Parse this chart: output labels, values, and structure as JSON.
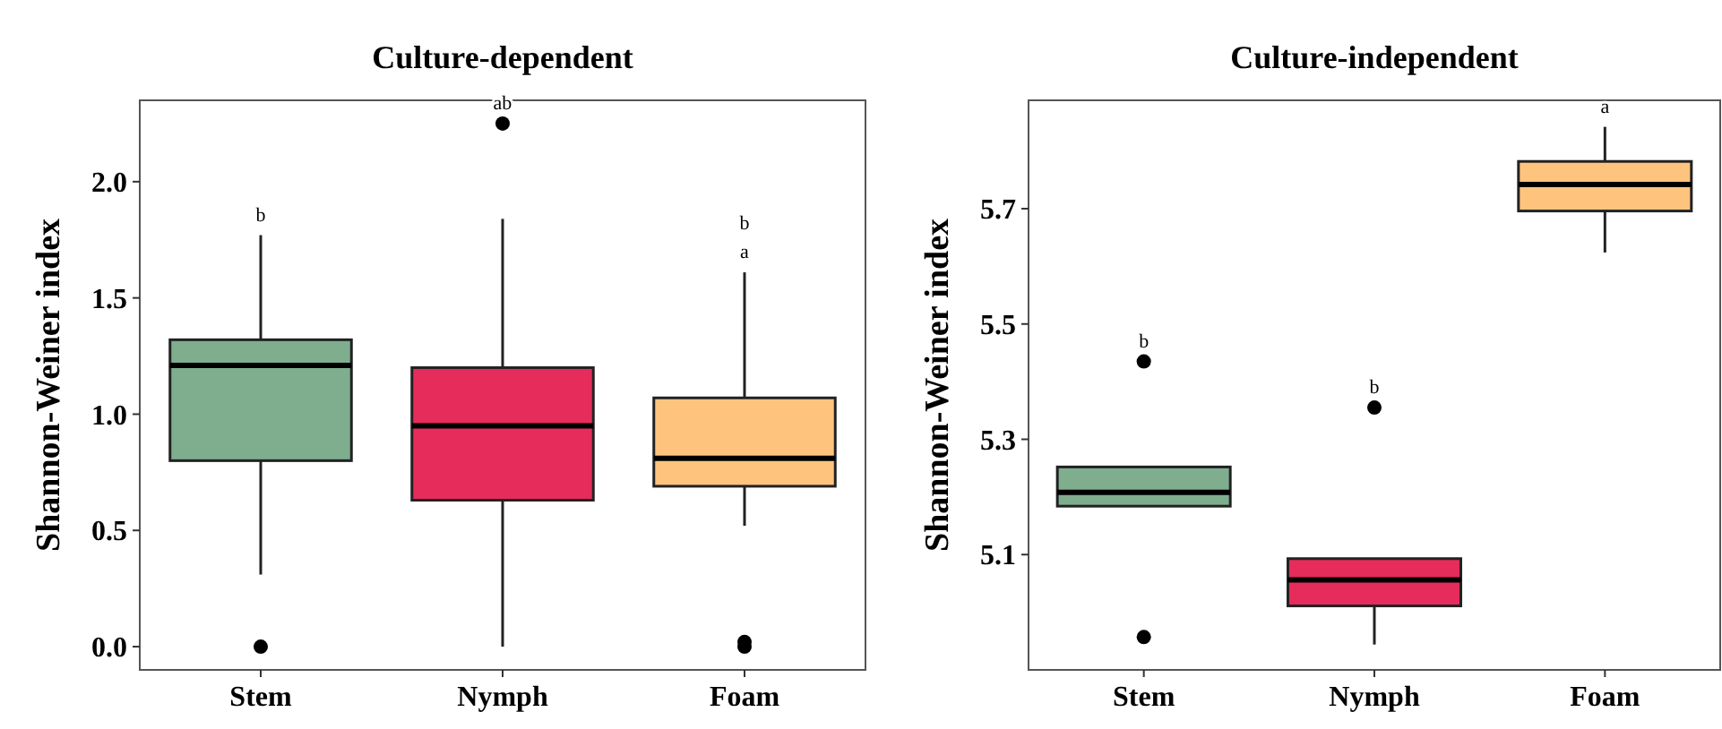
{
  "chart_data": [
    {
      "type": "box",
      "title": "Culture-dependent",
      "ylabel": "Shannon-Weiner index",
      "categories": [
        "Stem",
        "Nymph",
        "Foam"
      ],
      "colors": [
        "#7fae8f",
        "#e52c5a",
        "#fec47e"
      ],
      "boxes": [
        {
          "low": 0.31,
          "q1": 0.8,
          "median": 1.21,
          "q3": 1.32,
          "high": 1.77,
          "outliers": [
            0.0
          ]
        },
        {
          "low": 0.0,
          "q1": 0.63,
          "median": 0.95,
          "q3": 1.2,
          "high": 1.84,
          "outliers": [
            2.25
          ]
        },
        {
          "low": 0.52,
          "q1": 0.69,
          "median": 0.81,
          "q3": 1.07,
          "high": 1.61,
          "outliers": [
            0.0,
            0.02
          ]
        }
      ],
      "ylim": [
        -0.1,
        2.35
      ],
      "yticks": [
        {
          "value": 0,
          "label": "0.0"
        },
        0.5,
        {
          "value": 1,
          "label": "1.0"
        },
        1.5,
        {
          "value": 2,
          "label": "2.0"
        }
      ],
      "grid": false,
      "annotations": [
        "b",
        "ab",
        "b",
        "a"
      ]
    },
    {
      "type": "box",
      "title": "Culture-independent",
      "ylabel": "Shannon-Weiner index",
      "categories": [
        "Stem",
        "Nymph",
        "Foam"
      ],
      "colors": [
        "#7fae8f",
        "#e52c5a",
        "#fec47e"
      ],
      "boxes": [
        {
          "low": 5.184,
          "q1": 5.184,
          "median": 5.208,
          "q3": 5.252,
          "high": 5.252,
          "outliers": [
            5.435,
            4.957
          ]
        },
        {
          "low": 4.944,
          "q1": 5.011,
          "median": 5.056,
          "q3": 5.093,
          "high": 5.093,
          "outliers": [
            5.355
          ]
        },
        {
          "low": 5.624,
          "q1": 5.696,
          "median": 5.742,
          "q3": 5.782,
          "high": 5.842
        }
      ],
      "ylim": [
        4.9,
        5.888
      ],
      "yticks": [
        5.1,
        5.3,
        5.5,
        5.7
      ],
      "grid": false,
      "annotations": [
        "b",
        "b",
        "a"
      ]
    }
  ]
}
